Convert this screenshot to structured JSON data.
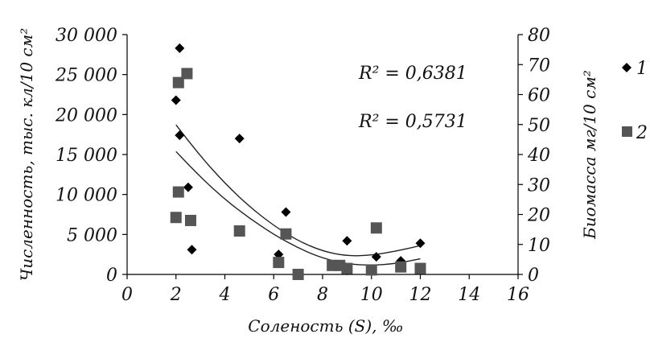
{
  "chart_data": {
    "type": "scatter",
    "xlabel": "Соленость (S), ‰",
    "ylabel": "Численность, тыс. кл/10 см²",
    "y2label": "Биомасса мг/10 см²",
    "xlim": [
      0,
      16
    ],
    "ylim": [
      0,
      30000
    ],
    "y2lim": [
      0,
      80
    ],
    "x_ticks": [
      "0",
      "2",
      "4",
      "6",
      "8",
      "10",
      "12",
      "14",
      "16"
    ],
    "y_ticks": [
      "0",
      "5 000",
      "10 000",
      "15 000",
      "20 000",
      "25 000",
      "30 000"
    ],
    "y2_ticks": [
      "0",
      "10",
      "20",
      "30",
      "40",
      "50",
      "60",
      "70",
      "80"
    ],
    "grid": false,
    "legend_position": "right",
    "series": [
      {
        "name": "1",
        "marker": "diamond",
        "axis": "left",
        "color": "#000000",
        "points": [
          [
            2.0,
            21800
          ],
          [
            2.15,
            28300
          ],
          [
            2.15,
            17400
          ],
          [
            2.5,
            10900
          ],
          [
            2.65,
            3100
          ],
          [
            4.6,
            17000
          ],
          [
            6.2,
            2500
          ],
          [
            6.5,
            7800
          ],
          [
            8.5,
            1100
          ],
          [
            9.0,
            4200
          ],
          [
            9.0,
            500
          ],
          [
            10.2,
            2200
          ],
          [
            11.2,
            1700
          ],
          [
            12.0,
            3900
          ]
        ]
      },
      {
        "name": "2",
        "marker": "square",
        "axis": "right",
        "color": "#555555",
        "points": [
          [
            2.0,
            19
          ],
          [
            2.1,
            27.5
          ],
          [
            2.1,
            64
          ],
          [
            2.45,
            67
          ],
          [
            2.6,
            18
          ],
          [
            4.6,
            14.5
          ],
          [
            6.2,
            4
          ],
          [
            6.5,
            13.5
          ],
          [
            7.0,
            0
          ],
          [
            8.4,
            3
          ],
          [
            8.7,
            3
          ],
          [
            9.0,
            2
          ],
          [
            10.0,
            1.5
          ],
          [
            10.2,
            15.5
          ],
          [
            11.2,
            2.5
          ],
          [
            12.0,
            2
          ]
        ]
      }
    ],
    "trendlines": [
      {
        "series": "1",
        "axis": "left",
        "r2_label": "R² = 0,6381",
        "x_range": [
          2,
          12
        ],
        "points": [
          [
            2,
            18700
          ],
          [
            3,
            14800
          ],
          [
            4,
            11400
          ],
          [
            5,
            8500
          ],
          [
            6,
            6100
          ],
          [
            7,
            4200
          ],
          [
            8,
            2900
          ],
          [
            9,
            2300
          ],
          [
            10,
            2400
          ],
          [
            11,
            2900
          ],
          [
            12,
            3600
          ]
        ]
      },
      {
        "series": "2",
        "axis": "right",
        "r2_label": "R² = 0,5731",
        "x_range": [
          2,
          12
        ],
        "points": [
          [
            2,
            41
          ],
          [
            3,
            32.5
          ],
          [
            4,
            25
          ],
          [
            5,
            18.8
          ],
          [
            6,
            13.3
          ],
          [
            7,
            8.8
          ],
          [
            8,
            5.4
          ],
          [
            9,
            3.5
          ],
          [
            10,
            3.0
          ],
          [
            11,
            3.6
          ],
          [
            12,
            5.2
          ]
        ]
      }
    ]
  }
}
